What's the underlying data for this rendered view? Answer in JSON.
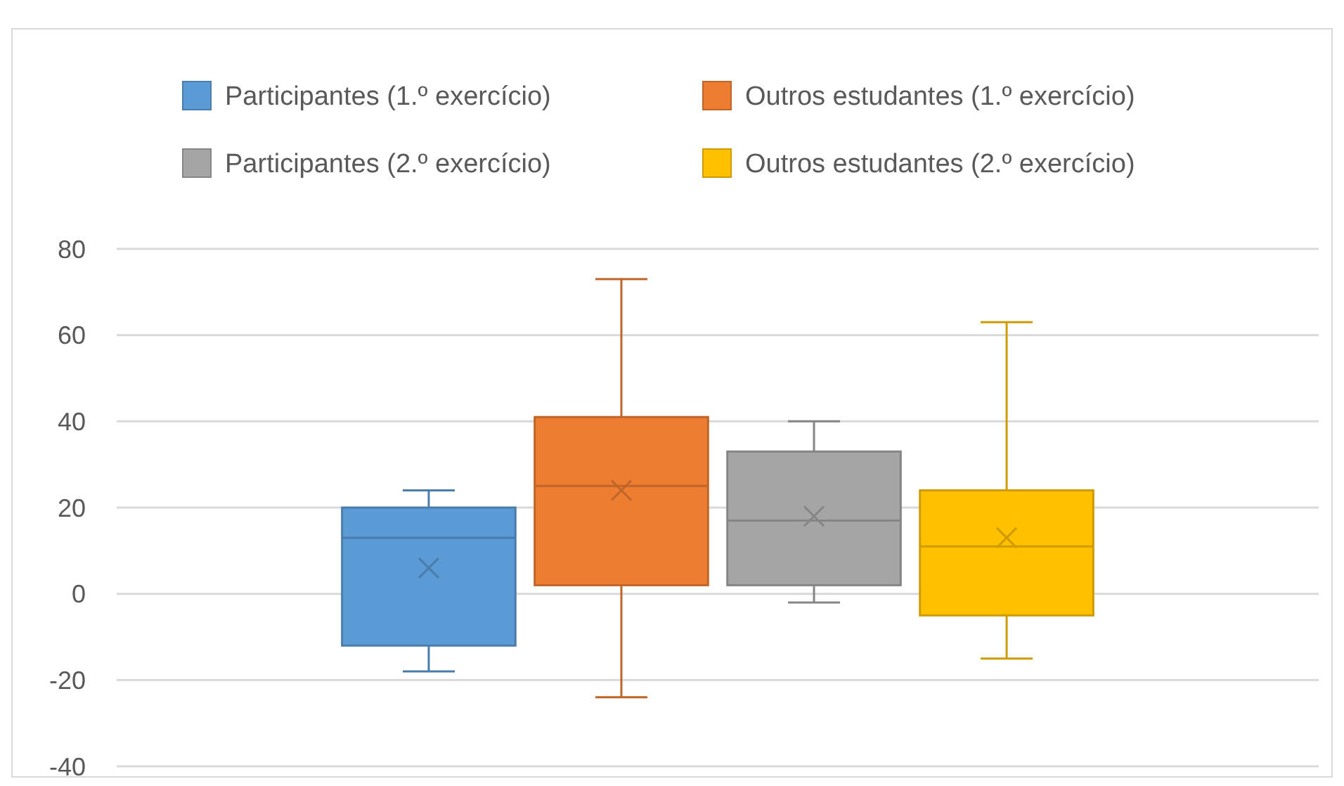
{
  "chart_data": {
    "type": "box",
    "categories": [
      null
    ],
    "ylim": [
      -40,
      80
    ],
    "yticks": [
      -40,
      -20,
      0,
      20,
      40,
      60,
      80
    ],
    "grid": "y",
    "legend": "top",
    "series": [
      {
        "name": "Participantes (1.º exercício)",
        "color": "#5b9bd5",
        "boxes": [
          {
            "low": -18,
            "q1": -12,
            "median": 13,
            "q3": 20,
            "high": 24,
            "mean": 6
          }
        ]
      },
      {
        "name": "Outros estudantes (1.º exercício)",
        "color": "#ed7d31",
        "boxes": [
          {
            "low": -24,
            "q1": 2,
            "median": 25,
            "q3": 41,
            "high": 73,
            "mean": 24
          }
        ]
      },
      {
        "name": "Participantes (2.º exercício)",
        "color": "#a5a5a5",
        "boxes": [
          {
            "low": -2,
            "q1": 2,
            "median": 17,
            "q3": 33,
            "high": 40,
            "mean": 18
          }
        ]
      },
      {
        "name": "Outros estudantes (2.º exercício)",
        "color": "#ffc000",
        "boxes": [
          {
            "low": -15,
            "q1": -5,
            "median": 11,
            "q3": 24,
            "high": 63,
            "mean": 13
          }
        ]
      }
    ]
  }
}
